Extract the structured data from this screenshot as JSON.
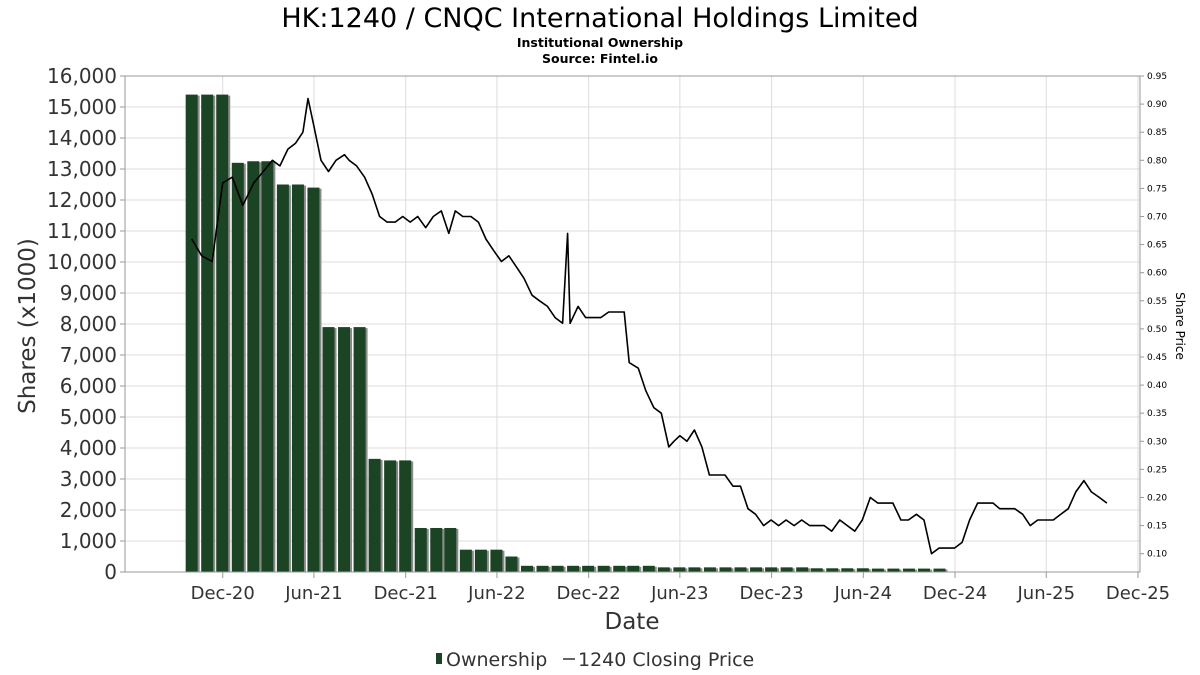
{
  "chart_data": {
    "type": "bar",
    "title": "HK:1240 / CNQC International Holdings Limited",
    "subtitle_lines": [
      "Institutional Ownership",
      "Source: Fintel.io"
    ],
    "xlabel": "Date",
    "ylabel": "Shares (x1000)",
    "y2label": "Share Price",
    "ylim": [
      0,
      16000
    ],
    "y2lim": [
      0.0674,
      0.95
    ],
    "y_ticks": [
      "0",
      "1,000",
      "2,000",
      "3,000",
      "4,000",
      "5,000",
      "6,000",
      "7,000",
      "8,000",
      "9,000",
      "10,000",
      "11,000",
      "12,000",
      "13,000",
      "14,000",
      "15,000",
      "16,000"
    ],
    "y2_ticks": [
      "0.10",
      "0.15",
      "0.20",
      "0.25",
      "0.30",
      "0.35",
      "0.40",
      "0.45",
      "0.50",
      "0.55",
      "0.60",
      "0.65",
      "0.70",
      "0.75",
      "0.80",
      "0.85",
      "0.90",
      "0.95"
    ],
    "x_ticks": [
      "Dec-20",
      "Jun-21",
      "Dec-21",
      "Jun-22",
      "Dec-22",
      "Jun-23",
      "Dec-23",
      "Jun-24",
      "Dec-24",
      "Jun-25",
      "Dec-25"
    ],
    "grid": true,
    "legend_position": "bottom",
    "colors": {
      "bar": "#1b4424",
      "bar_shadow": "#8a8a8a",
      "line": "#000000",
      "grid": "#dddddd",
      "frame": "#999999"
    },
    "series": [
      {
        "name": "Ownership",
        "type": "bar",
        "x": [
          "2020-09-30",
          "2020-10-31",
          "2020-11-30",
          "2020-12-31",
          "2021-01-31",
          "2021-02-28",
          "2021-03-31",
          "2021-04-30",
          "2021-05-31",
          "2021-06-30",
          "2021-07-31",
          "2021-08-31",
          "2021-09-30",
          "2021-10-31",
          "2021-11-30",
          "2021-12-31",
          "2022-01-31",
          "2022-02-28",
          "2022-03-31",
          "2022-04-30",
          "2022-05-31",
          "2022-06-30",
          "2022-07-31",
          "2022-08-31",
          "2022-09-30",
          "2022-10-31",
          "2022-11-30",
          "2022-12-31",
          "2023-01-31",
          "2023-02-28",
          "2023-03-31",
          "2023-04-30",
          "2023-05-31",
          "2023-06-30",
          "2023-07-31",
          "2023-08-31",
          "2023-09-30",
          "2023-10-31",
          "2023-11-30",
          "2023-12-31",
          "2024-01-31",
          "2024-02-29",
          "2024-03-31",
          "2024-04-30",
          "2024-05-31",
          "2024-06-30",
          "2024-07-31",
          "2024-08-31",
          "2024-09-30",
          "2024-10-31"
        ],
        "values": [
          15400,
          15400,
          15400,
          13200,
          13250,
          13250,
          12500,
          12500,
          12400,
          7900,
          7900,
          7900,
          3650,
          3600,
          3600,
          1420,
          1420,
          1420,
          720,
          720,
          720,
          500,
          200,
          200,
          200,
          200,
          200,
          200,
          200,
          200,
          200,
          150,
          150,
          150,
          150,
          150,
          150,
          150,
          150,
          150,
          150,
          120,
          120,
          120,
          120,
          110,
          110,
          110,
          110,
          110
        ]
      },
      {
        "name": "1240 Closing Price",
        "type": "line",
        "x": [
          "2020-09-30",
          "2020-10-20",
          "2020-11-10",
          "2020-12-01",
          "2020-12-20",
          "2021-01-10",
          "2021-02-01",
          "2021-02-20",
          "2021-03-10",
          "2021-03-25",
          "2021-04-10",
          "2021-04-25",
          "2021-05-10",
          "2021-05-20",
          "2021-06-01",
          "2021-06-15",
          "2021-06-30",
          "2021-07-15",
          "2021-08-01",
          "2021-08-10",
          "2021-08-25",
          "2021-09-10",
          "2021-09-25",
          "2021-10-10",
          "2021-10-25",
          "2021-11-10",
          "2021-11-25",
          "2021-12-10",
          "2021-12-25",
          "2022-01-10",
          "2022-01-25",
          "2022-02-10",
          "2022-02-25",
          "2022-03-10",
          "2022-03-25",
          "2022-04-10",
          "2022-04-25",
          "2022-05-10",
          "2022-05-25",
          "2022-06-10",
          "2022-06-25",
          "2022-07-10",
          "2022-07-25",
          "2022-08-10",
          "2022-08-25",
          "2022-09-10",
          "2022-09-25",
          "2022-10-10",
          "2022-10-20",
          "2022-10-25",
          "2022-11-10",
          "2022-11-25",
          "2022-12-10",
          "2022-12-25",
          "2023-01-10",
          "2023-01-25",
          "2023-02-10",
          "2023-02-20",
          "2023-03-10",
          "2023-03-25",
          "2023-04-10",
          "2023-04-25",
          "2023-05-10",
          "2023-05-20",
          "2023-06-01",
          "2023-06-15",
          "2023-06-30",
          "2023-07-15",
          "2023-07-30",
          "2023-08-15",
          "2023-08-30",
          "2023-09-15",
          "2023-09-30",
          "2023-10-15",
          "2023-10-30",
          "2023-11-15",
          "2023-11-30",
          "2023-12-15",
          "2023-12-30",
          "2024-01-15",
          "2024-01-30",
          "2024-02-15",
          "2024-02-28",
          "2024-03-15",
          "2024-03-30",
          "2024-04-15",
          "2024-04-30",
          "2024-05-15",
          "2024-05-30",
          "2024-06-15",
          "2024-06-30",
          "2024-07-15",
          "2024-07-30",
          "2024-08-15",
          "2024-08-30",
          "2024-09-15",
          "2024-09-30",
          "2024-10-15",
          "2024-10-30",
          "2024-11-15",
          "2024-11-30",
          "2024-12-15",
          "2024-12-30",
          "2025-01-15",
          "2025-01-30",
          "2025-02-15",
          "2025-02-28",
          "2025-03-15",
          "2025-03-30",
          "2025-04-15",
          "2025-04-30",
          "2025-05-15",
          "2025-05-30",
          "2025-06-15",
          "2025-06-30",
          "2025-07-15",
          "2025-07-30",
          "2025-08-15",
          "2025-08-30",
          "2025-09-15",
          "2025-09-30"
        ],
        "values": [
          0.66,
          0.63,
          0.62,
          0.76,
          0.77,
          0.72,
          0.76,
          0.78,
          0.8,
          0.79,
          0.82,
          0.83,
          0.85,
          0.91,
          0.86,
          0.8,
          0.78,
          0.8,
          0.81,
          0.8,
          0.79,
          0.77,
          0.74,
          0.7,
          0.69,
          0.69,
          0.7,
          0.69,
          0.7,
          0.68,
          0.7,
          0.71,
          0.67,
          0.71,
          0.7,
          0.7,
          0.69,
          0.66,
          0.64,
          0.62,
          0.63,
          0.61,
          0.59,
          0.56,
          0.55,
          0.54,
          0.52,
          0.51,
          0.67,
          0.51,
          0.54,
          0.52,
          0.52,
          0.52,
          0.53,
          0.53,
          0.53,
          0.44,
          0.43,
          0.39,
          0.36,
          0.35,
          0.29,
          0.3,
          0.31,
          0.3,
          0.32,
          0.29,
          0.24,
          0.24,
          0.24,
          0.22,
          0.22,
          0.18,
          0.17,
          0.15,
          0.16,
          0.15,
          0.16,
          0.15,
          0.16,
          0.15,
          0.15,
          0.15,
          0.14,
          0.16,
          0.15,
          0.14,
          0.16,
          0.2,
          0.19,
          0.19,
          0.19,
          0.16,
          0.16,
          0.17,
          0.16,
          0.1,
          0.11,
          0.11,
          0.11,
          0.12,
          0.16,
          0.19,
          0.19,
          0.19,
          0.18,
          0.18,
          0.18,
          0.17,
          0.15,
          0.16,
          0.16,
          0.16,
          0.17,
          0.18,
          0.21,
          0.23,
          0.21,
          0.2,
          0.19
        ]
      }
    ]
  }
}
